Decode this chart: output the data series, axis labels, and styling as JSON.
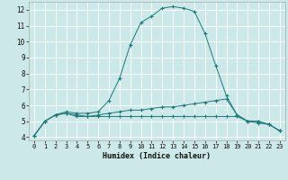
{
  "title": "",
  "xlabel": "Humidex (Indice chaleur)",
  "ylabel": "",
  "xlim": [
    -0.5,
    23.5
  ],
  "ylim": [
    3.8,
    12.5
  ],
  "xticks": [
    0,
    1,
    2,
    3,
    4,
    5,
    6,
    7,
    8,
    9,
    10,
    11,
    12,
    13,
    14,
    15,
    16,
    17,
    18,
    19,
    20,
    21,
    22,
    23
  ],
  "yticks": [
    4,
    5,
    6,
    7,
    8,
    9,
    10,
    11,
    12
  ],
  "background_color": "#cce8e8",
  "grid_color": "#ffffff",
  "line_color": "#1a7a7a",
  "series": [
    {
      "x": [
        0,
        1,
        2,
        3,
        4,
        5,
        6,
        7,
        8,
        9,
        10,
        11,
        12,
        13,
        14,
        15,
        16,
        17,
        18,
        19,
        20,
        21,
        22,
        23
      ],
      "y": [
        4.1,
        5.0,
        5.4,
        5.6,
        5.5,
        5.5,
        5.6,
        6.3,
        7.7,
        9.8,
        11.2,
        11.6,
        12.1,
        12.2,
        12.1,
        11.9,
        10.5,
        8.5,
        6.6,
        5.4,
        5.0,
        5.0,
        4.8,
        4.4
      ]
    },
    {
      "x": [
        0,
        1,
        2,
        3,
        4,
        5,
        6,
        7,
        8,
        9,
        10,
        11,
        12,
        13,
        14,
        15,
        16,
        17,
        18,
        19,
        20,
        21,
        22,
        23
      ],
      "y": [
        4.1,
        5.0,
        5.4,
        5.5,
        5.4,
        5.3,
        5.4,
        5.5,
        5.6,
        5.7,
        5.7,
        5.8,
        5.9,
        5.9,
        6.0,
        6.1,
        6.2,
        6.3,
        6.4,
        5.4,
        5.0,
        4.9,
        4.8,
        4.4
      ]
    },
    {
      "x": [
        0,
        1,
        2,
        3,
        4,
        5,
        6,
        7,
        8,
        9,
        10,
        11,
        12,
        13,
        14,
        15,
        16,
        17,
        18,
        19,
        20,
        21,
        22,
        23
      ],
      "y": [
        4.1,
        5.0,
        5.4,
        5.5,
        5.3,
        5.3,
        5.3,
        5.3,
        5.3,
        5.3,
        5.3,
        5.3,
        5.3,
        5.3,
        5.3,
        5.3,
        5.3,
        5.3,
        5.3,
        5.3,
        5.0,
        5.0,
        4.8,
        4.4
      ]
    }
  ],
  "figsize": [
    3.2,
    2.0
  ],
  "dpi": 100
}
